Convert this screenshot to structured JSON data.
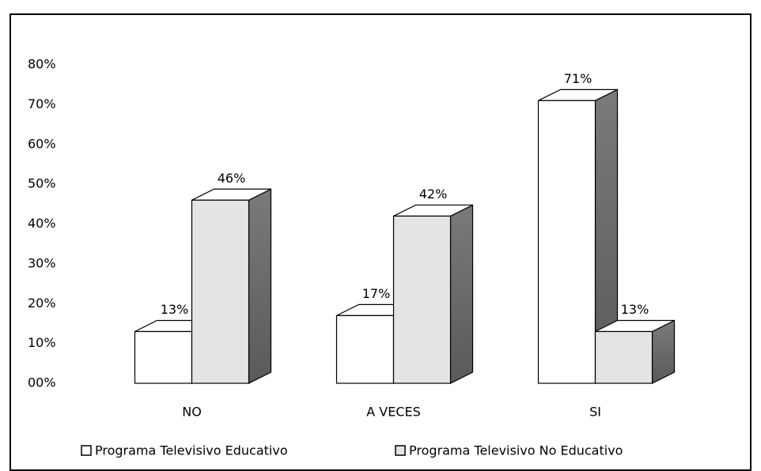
{
  "chart_data": {
    "type": "bar3d",
    "categories": [
      "NO",
      "A VECES",
      "SI"
    ],
    "series": [
      {
        "name": "Programa Televisivo Educativo",
        "color": "#ffffff",
        "values": [
          13,
          17,
          71
        ],
        "value_labels": [
          "13%",
          "17%",
          "71%"
        ]
      },
      {
        "name": "Programa Televisivo No Educativo",
        "color": "#e4e4e4",
        "values": [
          46,
          42,
          13
        ],
        "value_labels": [
          "46%",
          "42%",
          "13%"
        ]
      }
    ],
    "ylim": [
      0,
      80
    ],
    "yticks": [
      {
        "value": 0,
        "label": "00%"
      },
      {
        "value": 10,
        "label": "10%"
      },
      {
        "value": 20,
        "label": "20%"
      },
      {
        "value": 30,
        "label": "30%"
      },
      {
        "value": 40,
        "label": "40%"
      },
      {
        "value": 50,
        "label": "50%"
      },
      {
        "value": 60,
        "label": "60%"
      },
      {
        "value": 70,
        "label": "70%"
      },
      {
        "value": 80,
        "label": "80%"
      }
    ],
    "grid": false,
    "legend": "bottom"
  }
}
